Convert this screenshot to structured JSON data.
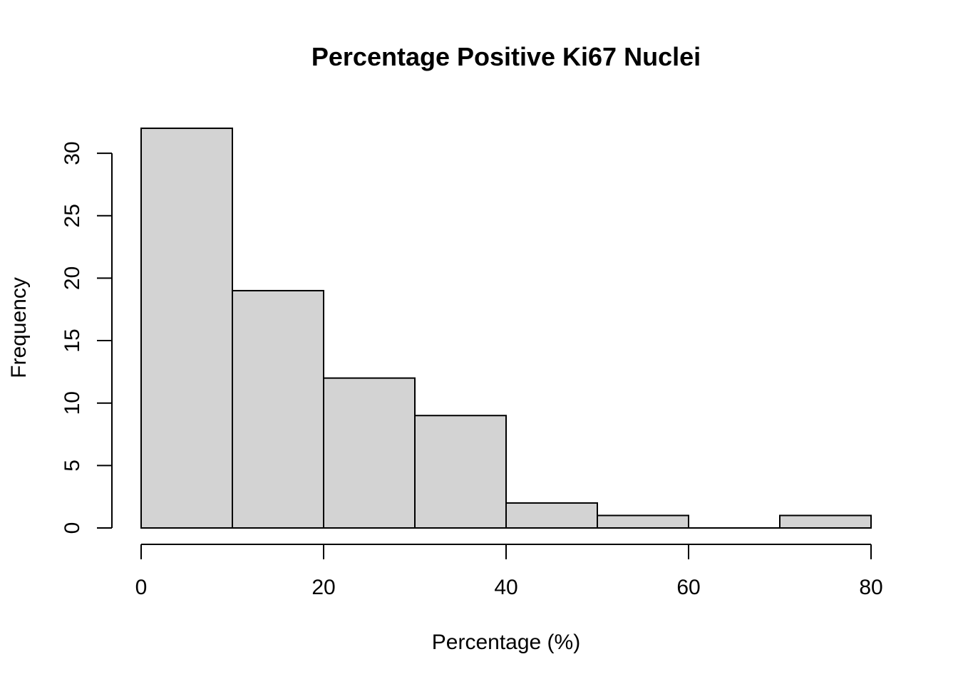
{
  "chart_data": {
    "type": "histogram",
    "title": "Percentage Positive Ki67 Nuclei",
    "xlabel": "Percentage (%)",
    "ylabel": "Frequency",
    "bins": [
      {
        "from": 0,
        "to": 10,
        "count": 32
      },
      {
        "from": 10,
        "to": 20,
        "count": 19
      },
      {
        "from": 20,
        "to": 30,
        "count": 12
      },
      {
        "from": 30,
        "to": 40,
        "count": 9
      },
      {
        "from": 40,
        "to": 50,
        "count": 2
      },
      {
        "from": 50,
        "to": 60,
        "count": 1
      },
      {
        "from": 60,
        "to": 70,
        "count": 0
      },
      {
        "from": 70,
        "to": 80,
        "count": 1
      }
    ],
    "xlim": [
      0,
      80
    ],
    "ylim": [
      0,
      32
    ],
    "x_ticks": [
      0,
      20,
      40,
      60,
      80
    ],
    "x_tick_labels": [
      "0",
      "20",
      "40",
      "60",
      "80"
    ],
    "y_ticks": [
      0,
      5,
      10,
      15,
      20,
      25,
      30
    ],
    "y_tick_labels": [
      "0",
      "5",
      "10",
      "15",
      "20",
      "25",
      "30"
    ],
    "bar_fill": "#d3d3d3",
    "bar_stroke": "#000000",
    "grid": false
  }
}
